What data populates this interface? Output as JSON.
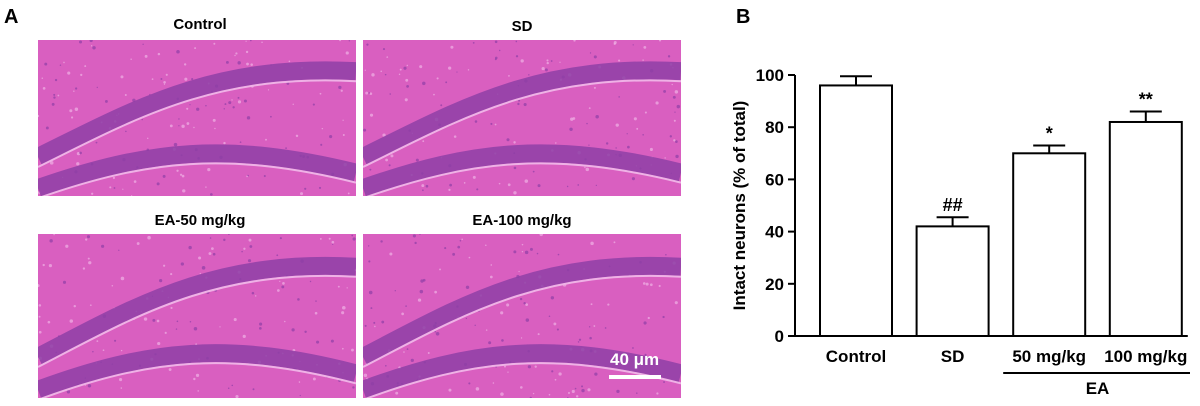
{
  "panel_a": {
    "label": "A",
    "images": [
      {
        "title": "Control"
      },
      {
        "title": "SD"
      },
      {
        "title": "EA-50 mg/kg"
      },
      {
        "title": "EA-100 mg/kg"
      }
    ],
    "scale_bar": "40 μm",
    "stain_colors": {
      "background": "#d95fc0",
      "cell_layer": "#8e3fa6",
      "light": "#efb2e6"
    }
  },
  "panel_b": {
    "label": "B"
  },
  "chart_data": {
    "type": "bar",
    "ylabel": "Intact neurons (% of total)",
    "xlabel": "",
    "ylim": [
      0,
      100
    ],
    "yticks": [
      0,
      20,
      40,
      60,
      80,
      100
    ],
    "categories": [
      "Control",
      "SD",
      "50 mg/kg",
      "100 mg/kg"
    ],
    "values": [
      96,
      42,
      70,
      82
    ],
    "errors": [
      3.5,
      3.5,
      3,
      4
    ],
    "annotations": [
      "",
      "##",
      "*",
      "**"
    ],
    "group_label": {
      "text": "EA",
      "categories": [
        "50 mg/kg",
        "100 mg/kg"
      ]
    },
    "bar_fill": "#ffffff",
    "bar_stroke": "#000000"
  }
}
